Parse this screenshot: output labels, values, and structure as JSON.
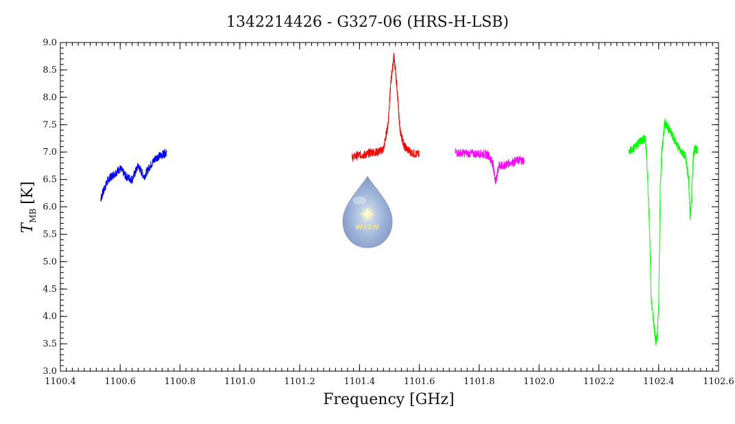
{
  "chart_data": {
    "type": "line",
    "title": "1342214426 - G327-06 (HRS-H-LSB)",
    "xlabel": "Frequency [GHz]",
    "ylabel_main": "T",
    "ylabel_sub": "MB",
    "ylabel_unit": "[K]",
    "xlim": [
      1100.4,
      1102.6
    ],
    "ylim": [
      3.0,
      9.0
    ],
    "x_ticks": [
      "1100.4",
      "1100.6",
      "1100.8",
      "1101.0",
      "1101.2",
      "1101.4",
      "1101.6",
      "1101.8",
      "1102.0",
      "1102.2",
      "1102.4",
      "1102.6"
    ],
    "y_ticks": [
      "3.0",
      "3.5",
      "4.0",
      "4.5",
      "5.0",
      "5.5",
      "6.0",
      "6.5",
      "7.0",
      "7.5",
      "8.0",
      "8.5",
      "9.0"
    ],
    "series": [
      {
        "color": "#0000ff",
        "x": [
          1100.535,
          1100.545,
          1100.56,
          1100.58,
          1100.6,
          1100.62,
          1100.64,
          1100.66,
          1100.68,
          1100.7,
          1100.72,
          1100.74,
          1100.755
        ],
        "y": [
          6.15,
          6.3,
          6.5,
          6.6,
          6.7,
          6.55,
          6.5,
          6.75,
          6.55,
          6.75,
          6.9,
          6.95,
          7.0
        ]
      },
      {
        "color": "#ff0000",
        "x": [
          1101.375,
          1101.4,
          1101.42,
          1101.44,
          1101.46,
          1101.48,
          1101.495,
          1101.505,
          1101.515,
          1101.525,
          1101.535,
          1101.55,
          1101.57,
          1101.6
        ],
        "y": [
          6.9,
          6.95,
          6.95,
          7.0,
          7.0,
          7.05,
          7.5,
          8.3,
          8.75,
          8.2,
          7.4,
          7.1,
          7.0,
          6.95
        ]
      },
      {
        "color": "#ff00ff",
        "x": [
          1101.72,
          1101.75,
          1101.78,
          1101.81,
          1101.83,
          1101.845,
          1101.855,
          1101.865,
          1101.88,
          1101.9,
          1101.93,
          1101.95
        ],
        "y": [
          7.0,
          6.98,
          6.97,
          6.97,
          6.95,
          6.8,
          6.45,
          6.75,
          6.75,
          6.8,
          6.85,
          6.85
        ]
      },
      {
        "color": "#00ff00",
        "x": [
          1102.3,
          1102.32,
          1102.34,
          1102.355,
          1102.36,
          1102.37,
          1102.375,
          1102.385,
          1102.39,
          1102.395,
          1102.4,
          1102.405,
          1102.41,
          1102.42,
          1102.43,
          1102.45,
          1102.47,
          1102.49,
          1102.5,
          1102.505,
          1102.51,
          1102.515,
          1102.52,
          1102.53
        ],
        "y": [
          7.0,
          7.1,
          7.2,
          7.25,
          6.9,
          5.5,
          4.3,
          3.8,
          3.55,
          3.65,
          4.2,
          6.3,
          7.0,
          7.55,
          7.45,
          7.25,
          7.05,
          6.9,
          6.5,
          5.8,
          6.2,
          6.9,
          7.05,
          7.05
        ]
      }
    ],
    "logo": {
      "name": "wish-logo",
      "text": "WISH"
    }
  }
}
